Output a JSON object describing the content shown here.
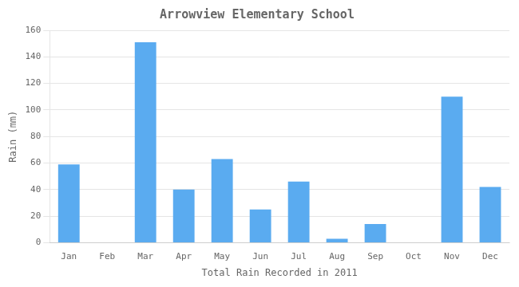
{
  "chart_data": {
    "type": "bar",
    "title": "Arrowview Elementary School",
    "xlabel": "Total Rain Recorded in 2011",
    "ylabel": "Rain (mm)",
    "categories": [
      "Jan",
      "Feb",
      "Mar",
      "Apr",
      "May",
      "Jun",
      "Jul",
      "Aug",
      "Sep",
      "Oct",
      "Nov",
      "Dec"
    ],
    "values": [
      59,
      0,
      151,
      40,
      63,
      25,
      46,
      3,
      14,
      0,
      110,
      42
    ],
    "color": "#5aabf0",
    "ylim": [
      0,
      160
    ],
    "yticks": [
      0,
      20,
      40,
      60,
      80,
      100,
      120,
      140,
      160
    ],
    "grid": true
  }
}
